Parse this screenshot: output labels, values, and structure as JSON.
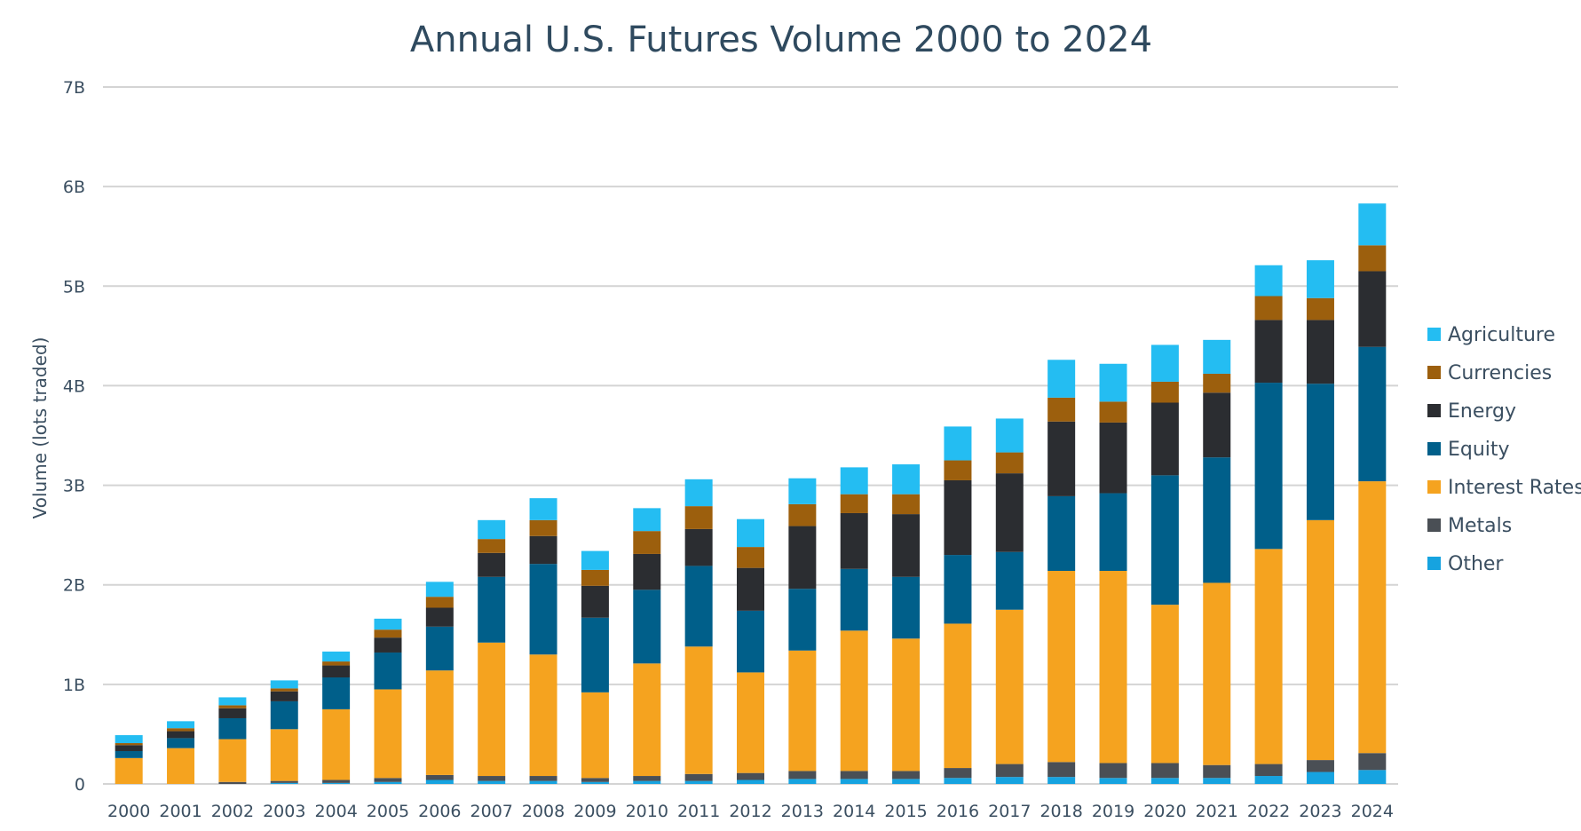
{
  "chart_data": {
    "type": "bar",
    "stacked": true,
    "title": "Annual U.S. Futures Volume 2000 to 2024",
    "xlabel": "",
    "ylabel": "Volume (lots traded)",
    "ylim": [
      0,
      7
    ],
    "yticks": [
      0,
      1,
      2,
      3,
      4,
      5,
      6,
      7
    ],
    "ytick_labels": [
      "0",
      "1B",
      "2B",
      "3B",
      "4B",
      "5B",
      "6B",
      "7B"
    ],
    "unit": "billions of lots",
    "grid": true,
    "legend_position": "right",
    "categories": [
      "2000",
      "2001",
      "2002",
      "2003",
      "2004",
      "2005",
      "2006",
      "2007",
      "2008",
      "2009",
      "2010",
      "2011",
      "2012",
      "2013",
      "2014",
      "2015",
      "2016",
      "2017",
      "2018",
      "2019",
      "2020",
      "2021",
      "2022",
      "2023",
      "2024"
    ],
    "series": [
      {
        "name": "Other",
        "color": "#16a3e0",
        "values": [
          0.0,
          0.0,
          0.0,
          0.01,
          0.01,
          0.02,
          0.04,
          0.03,
          0.03,
          0.02,
          0.03,
          0.03,
          0.04,
          0.05,
          0.05,
          0.05,
          0.06,
          0.07,
          0.07,
          0.06,
          0.06,
          0.06,
          0.08,
          0.12,
          0.14
        ]
      },
      {
        "name": "Metals",
        "color": "#4a4f55",
        "values": [
          0.0,
          0.0,
          0.02,
          0.02,
          0.03,
          0.04,
          0.05,
          0.05,
          0.05,
          0.04,
          0.05,
          0.07,
          0.07,
          0.08,
          0.08,
          0.08,
          0.1,
          0.13,
          0.15,
          0.15,
          0.15,
          0.13,
          0.12,
          0.12,
          0.17
        ]
      },
      {
        "name": "Interest Rates",
        "color": "#f5a31f",
        "values": [
          0.26,
          0.36,
          0.43,
          0.52,
          0.71,
          0.89,
          1.05,
          1.34,
          1.22,
          0.86,
          1.13,
          1.28,
          1.01,
          1.21,
          1.41,
          1.33,
          1.45,
          1.55,
          1.92,
          1.93,
          1.59,
          1.83,
          2.16,
          2.41,
          2.73
        ]
      },
      {
        "name": "Equity",
        "color": "#005f8a",
        "values": [
          0.07,
          0.1,
          0.21,
          0.28,
          0.32,
          0.37,
          0.44,
          0.66,
          0.91,
          0.75,
          0.74,
          0.81,
          0.62,
          0.62,
          0.62,
          0.62,
          0.69,
          0.58,
          0.75,
          0.78,
          1.3,
          1.26,
          1.67,
          1.37,
          1.35
        ]
      },
      {
        "name": "Energy",
        "color": "#2b2d31",
        "values": [
          0.06,
          0.07,
          0.1,
          0.1,
          0.12,
          0.15,
          0.19,
          0.24,
          0.28,
          0.32,
          0.36,
          0.37,
          0.43,
          0.63,
          0.56,
          0.63,
          0.75,
          0.79,
          0.75,
          0.71,
          0.73,
          0.65,
          0.63,
          0.64,
          0.76
        ]
      },
      {
        "name": "Currencies",
        "color": "#9c5f0d",
        "values": [
          0.02,
          0.03,
          0.03,
          0.03,
          0.04,
          0.08,
          0.11,
          0.14,
          0.16,
          0.16,
          0.23,
          0.23,
          0.21,
          0.22,
          0.19,
          0.2,
          0.2,
          0.21,
          0.24,
          0.21,
          0.21,
          0.19,
          0.24,
          0.22,
          0.26
        ]
      },
      {
        "name": "Agriculture",
        "color": "#24bdf2",
        "values": [
          0.08,
          0.07,
          0.08,
          0.08,
          0.1,
          0.11,
          0.15,
          0.19,
          0.22,
          0.19,
          0.23,
          0.27,
          0.28,
          0.26,
          0.27,
          0.3,
          0.34,
          0.34,
          0.38,
          0.38,
          0.37,
          0.34,
          0.31,
          0.38,
          0.42
        ]
      }
    ]
  }
}
